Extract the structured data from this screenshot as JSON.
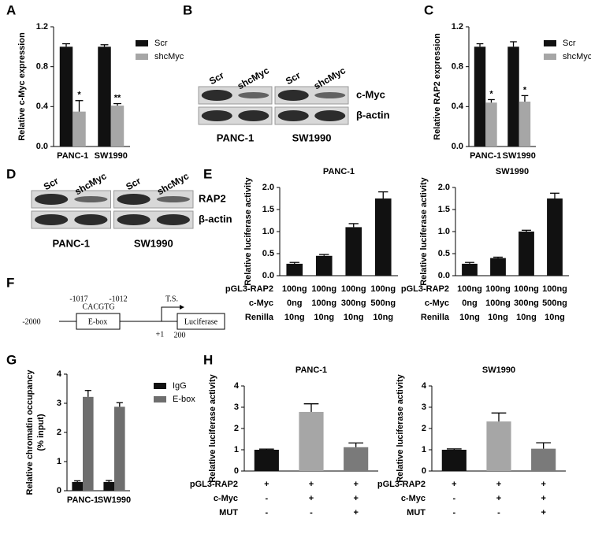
{
  "panel_labels": [
    "A",
    "B",
    "C",
    "D",
    "E",
    "F",
    "G",
    "H"
  ],
  "chart_data": [
    {
      "type": "bar",
      "ylabel": "Relative c-Myc expression",
      "categories": [
        "PANC-1",
        "SW1990"
      ],
      "series": [
        {
          "name": "Scr",
          "color": "#111111",
          "values": [
            1.0,
            1.0
          ],
          "errors": [
            0.03,
            0.02
          ]
        },
        {
          "name": "shcMyc",
          "color": "#a6a6a6",
          "values": [
            0.35,
            0.41
          ],
          "errors": [
            0.11,
            0.02
          ],
          "annotations": [
            "*",
            "**"
          ]
        }
      ],
      "ylim": [
        0,
        1.2
      ],
      "yticks": [
        {
          "value": 0,
          "label": "0.0"
        },
        0.4,
        0.8,
        1.2
      ]
    },
    {
      "type": "bar",
      "ylabel": "Relative RAP2 expression",
      "categories": [
        "PANC-1",
        "SW1990"
      ],
      "series": [
        {
          "name": "Scr",
          "color": "#111111",
          "values": [
            1.0,
            1.0
          ],
          "errors": [
            0.03,
            0.05
          ]
        },
        {
          "name": "shcMyc",
          "color": "#a6a6a6",
          "values": [
            0.44,
            0.45
          ],
          "errors": [
            0.03,
            0.06
          ],
          "annotations": [
            "*",
            "*"
          ]
        }
      ],
      "ylim": [
        0,
        1.2
      ],
      "yticks": [
        {
          "value": 0,
          "label": "0.0"
        },
        0.4,
        0.8,
        1.2
      ]
    },
    {
      "type": "bar",
      "title": "PANC-1",
      "ylabel": "Relative luciferase activity",
      "series": [
        {
          "color": "#111111",
          "values": [
            0.27,
            0.45,
            1.1,
            1.75
          ],
          "errors": [
            0.03,
            0.03,
            0.08,
            0.15
          ]
        }
      ],
      "ylim": [
        0,
        2.0
      ],
      "yticks": [
        {
          "value": 0,
          "label": "0.0"
        },
        0.5,
        {
          "value": 1,
          "label": "1.0"
        },
        1.5,
        {
          "value": 2,
          "label": "2.0"
        }
      ],
      "table": [
        {
          "label": "pGL3-RAP2",
          "cells": [
            "100ng",
            "100ng",
            "100ng",
            "100ng"
          ]
        },
        {
          "label": "c-Myc",
          "cells": [
            "0ng",
            "100ng",
            "300ng",
            "500ng"
          ]
        },
        {
          "label": "Renilla",
          "cells": [
            "10ng",
            "10ng",
            "10ng",
            "10ng"
          ]
        }
      ]
    },
    {
      "type": "bar",
      "title": "SW1990",
      "ylabel": "Relative luciferase activity",
      "series": [
        {
          "color": "#111111",
          "values": [
            0.27,
            0.4,
            1.0,
            1.75
          ],
          "errors": [
            0.03,
            0.02,
            0.03,
            0.12
          ]
        }
      ],
      "ylim": [
        0,
        2.0
      ],
      "yticks": [
        {
          "value": 0,
          "label": "0.0"
        },
        0.5,
        {
          "value": 1,
          "label": "1.0"
        },
        1.5,
        {
          "value": 2,
          "label": "2.0"
        }
      ],
      "table": [
        {
          "label": "pGL3-RAP2",
          "cells": [
            "100ng",
            "100ng",
            "100ng",
            "100ng"
          ]
        },
        {
          "label": "c-Myc",
          "cells": [
            "0ng",
            "100ng",
            "300ng",
            "500ng"
          ]
        },
        {
          "label": "Renilla",
          "cells": [
            "10ng",
            "10ng",
            "10ng",
            "10ng"
          ]
        }
      ]
    },
    {
      "type": "bar",
      "ylabel": [
        "Relative chromatin occupancy",
        "(% input)"
      ],
      "categories": [
        "PANC-1",
        "SW1990"
      ],
      "series": [
        {
          "name": "IgG",
          "color": "#111111",
          "values": [
            0.3,
            0.3
          ],
          "errors": [
            0.04,
            0.05
          ]
        },
        {
          "name": "E-box",
          "color": "#6e6e6e",
          "values": [
            3.22,
            2.88
          ],
          "errors": [
            0.22,
            0.14
          ]
        }
      ],
      "ylim": [
        0,
        4
      ],
      "yticks": [
        0,
        1,
        2,
        3,
        4
      ]
    },
    {
      "type": "bar",
      "title": "PANC-1",
      "ylabel": "Relative luciferase activity",
      "series": [
        {
          "colors": [
            "#111111",
            "#a6a6a6",
            "#7a7a7a"
          ],
          "values": [
            1.0,
            2.78,
            1.12
          ],
          "errors": [
            0.03,
            0.38,
            0.2
          ]
        }
      ],
      "ylim": [
        0,
        4
      ],
      "yticks": [
        0,
        1,
        2,
        3,
        4
      ],
      "table": [
        {
          "label": "pGL3-RAP2",
          "cells": [
            "+",
            "+",
            "+"
          ]
        },
        {
          "label": "c-Myc",
          "cells": [
            "-",
            "+",
            "+"
          ]
        },
        {
          "label": "MUT",
          "cells": [
            "-",
            "-",
            "+"
          ]
        }
      ]
    },
    {
      "type": "bar",
      "title": "SW1990",
      "ylabel": "Relative luciferase activity",
      "series": [
        {
          "colors": [
            "#111111",
            "#a6a6a6",
            "#7a7a7a"
          ],
          "values": [
            1.0,
            2.33,
            1.05
          ],
          "errors": [
            0.04,
            0.4,
            0.28
          ]
        }
      ],
      "ylim": [
        0,
        4
      ],
      "yticks": [
        0,
        1,
        2,
        3,
        4
      ],
      "table": [
        {
          "label": "pGL3-RAP2",
          "cells": [
            "+",
            "+",
            "+"
          ]
        },
        {
          "label": "c-Myc",
          "cells": [
            "-",
            "+",
            "+"
          ]
        },
        {
          "label": "MUT",
          "cells": [
            "-",
            "-",
            "+"
          ]
        }
      ]
    }
  ],
  "blots": [
    {
      "lanes": [
        "Scr",
        "shcMyc",
        "Scr",
        "shcMyc"
      ],
      "bands": [
        "c-Myc",
        "β-actin"
      ],
      "groups": [
        "PANC-1",
        "SW1990"
      ]
    },
    {
      "lanes": [
        "Scr",
        "shcMyc",
        "Scr",
        "shcMyc"
      ],
      "bands": [
        "RAP2",
        "β-actin"
      ],
      "groups": [
        "PANC-1",
        "SW1990"
      ]
    }
  ],
  "diagram": {
    "start": "-2000",
    "site_start": "-1017",
    "site_end": "-1012",
    "sequence": "CACGTG",
    "element": "E-box",
    "tss": "T.S.",
    "plus_one": "+1",
    "reporter": "Luciferase",
    "end": "200"
  }
}
